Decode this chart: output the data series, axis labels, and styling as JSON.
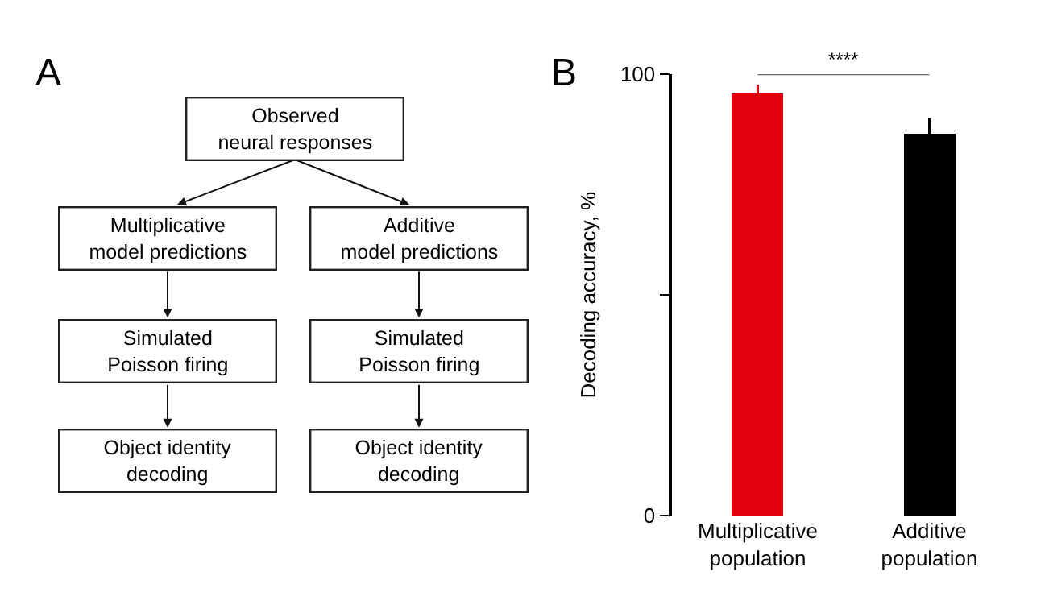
{
  "chart_data": [
    {
      "type": "other",
      "title": "A",
      "annotations": [
        "Observed\nneural responses",
        "Multiplicative\nmodel predictions",
        "Additive\nmodel predictions",
        "Simulated\nPoisson firing",
        "Simulated\nPoisson firing",
        "Object identity\ndecoding",
        "Object identity\ndecoding"
      ]
    },
    {
      "type": "bar",
      "title": "B",
      "ylabel": "Decoding accuracy, %",
      "categories": [
        "Multiplicative\npopulation",
        "Additive\npopulation"
      ],
      "values": [
        95.6,
        86.5
      ],
      "colors": [
        "#e3000f",
        "#000000"
      ],
      "errors": [
        [
          95.6,
          97.7
        ],
        [
          86.5,
          90.0
        ]
      ],
      "ylim": [
        0,
        100
      ],
      "yticks": [
        0,
        {
          "value": 50,
          "label": null
        },
        100
      ],
      "legend": false,
      "annotations": [
        "****"
      ]
    }
  ]
}
